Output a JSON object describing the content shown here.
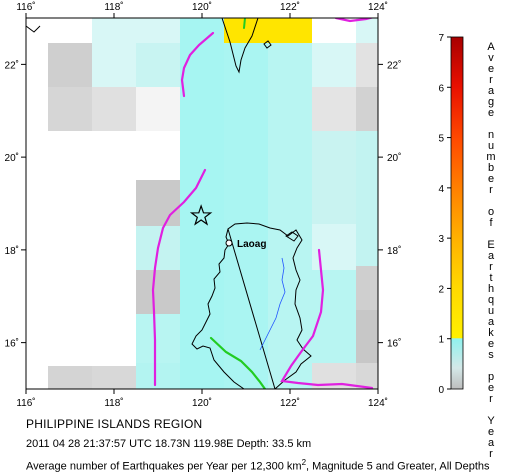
{
  "map": {
    "lon_ticks": [
      "116˚",
      "118˚",
      "120˚",
      "122˚",
      "124˚"
    ],
    "lat_ticks": [
      "22˚",
      "20˚",
      "18˚",
      "16˚"
    ],
    "city_label": "Laoag",
    "lon_range": [
      116,
      124
    ],
    "lat_range": [
      15,
      23
    ],
    "colors": {
      "water": "#ffffff",
      "cyan": "#a6f5f2",
      "cyan_light": "#d6f8f7",
      "gray": "#c9c9c9",
      "gray_light": "#e2e2e2",
      "yellow": "#ffe500",
      "trench": "#e020e0",
      "ridge": "#22cc22",
      "river": "#2255ff"
    }
  },
  "legend": {
    "title": "Average number of Earthquakes per Year",
    "ticks": [
      "0",
      "1",
      "2",
      "3",
      "4",
      "5",
      "6",
      "7"
    ],
    "range": [
      0,
      7
    ]
  },
  "caption": {
    "region": "PHILIPPINE ISLANDS REGION",
    "event": "2011 04 28 21:37:57 UTC 18.73N 119.98E Depth: 33.5 km",
    "average_prefix": "Average number of Earthquakes per Year per 12,300 km",
    "average_sup": "2",
    "average_suffix": ", Magnitude 5 and Greater, All Depths"
  },
  "epicenter": {
    "lat": 18.73,
    "lon": 119.98
  }
}
